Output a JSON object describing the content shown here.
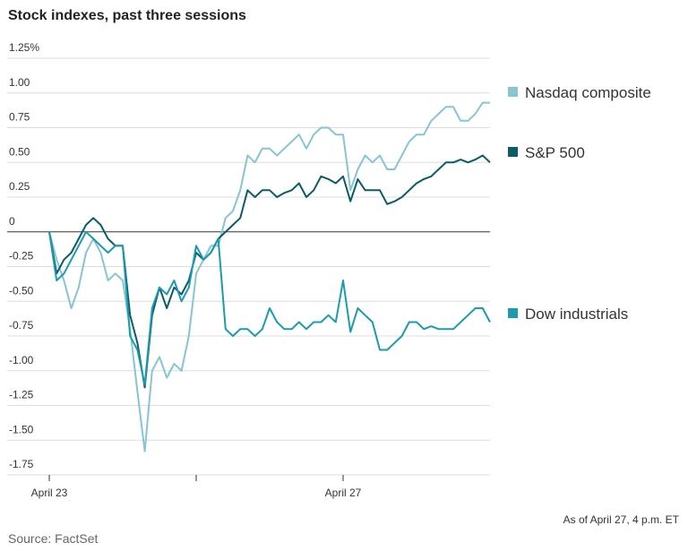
{
  "chart_data": {
    "type": "line",
    "title": "Stock indexes, past three sessions",
    "note": "As of April 27, 4 p.m. ET",
    "source": "Source: FactSet",
    "x": [
      0,
      1,
      2,
      3,
      4,
      5,
      6,
      7,
      8,
      9,
      10,
      11,
      12,
      13,
      14,
      15,
      16,
      17,
      18,
      19,
      20,
      21,
      22,
      23,
      24,
      25,
      26,
      27,
      28,
      29,
      30,
      31,
      32,
      33,
      34,
      35,
      36,
      37,
      38,
      39,
      40,
      41,
      42,
      43,
      44,
      45,
      46,
      47,
      48,
      49,
      50,
      51,
      52,
      53,
      54,
      55,
      56,
      57,
      58,
      59,
      60
    ],
    "xlim": [
      0,
      60
    ],
    "xticks": [
      {
        "value": 0,
        "label": "April 23"
      },
      {
        "value": 20,
        "label": null
      },
      {
        "value": 40,
        "label": "April 27"
      }
    ],
    "ylim": [
      -1.75,
      1.25
    ],
    "yticks": [
      {
        "value": 1.25,
        "label": "1.25%"
      },
      {
        "value": 1,
        "label": "1.00"
      },
      0.75,
      {
        "value": 0.5,
        "label": "0.50"
      },
      0.25,
      0,
      -0.25,
      {
        "value": -0.5,
        "label": "-0.50"
      },
      -0.75,
      {
        "value": -1,
        "label": "-1.00"
      },
      -1.25,
      {
        "value": -1.5,
        "label": "-1.50"
      },
      -1.75
    ],
    "grid": true,
    "series": [
      {
        "name": "Nasdaq composite",
        "color": "#86c5d2",
        "values": [
          0,
          -0.2,
          -0.35,
          -0.55,
          -0.4,
          -0.15,
          -0.05,
          -0.15,
          -0.35,
          -0.3,
          -0.35,
          -0.7,
          -1.15,
          -1.58,
          -1.0,
          -0.9,
          -1.05,
          -0.95,
          -1.0,
          -0.75,
          -0.3,
          -0.2,
          -0.1,
          -0.1,
          0.1,
          0.15,
          0.3,
          0.55,
          0.5,
          0.6,
          0.6,
          0.55,
          0.6,
          0.65,
          0.7,
          0.6,
          0.7,
          0.75,
          0.75,
          0.7,
          0.7,
          0.3,
          0.45,
          0.55,
          0.5,
          0.55,
          0.45,
          0.45,
          0.55,
          0.65,
          0.7,
          0.7,
          0.8,
          0.85,
          0.9,
          0.9,
          0.8,
          0.8,
          0.85,
          0.93,
          0.93
        ]
      },
      {
        "name": "S&P 500",
        "color": "#0a5c66",
        "values": [
          0,
          -0.3,
          -0.2,
          -0.15,
          -0.05,
          0.05,
          0.1,
          0.05,
          -0.05,
          -0.1,
          -0.1,
          -0.6,
          -0.8,
          -1.12,
          -0.6,
          -0.4,
          -0.55,
          -0.4,
          -0.45,
          -0.35,
          -0.15,
          -0.2,
          -0.15,
          -0.05,
          0,
          0.05,
          0.1,
          0.3,
          0.25,
          0.3,
          0.3,
          0.25,
          0.28,
          0.3,
          0.35,
          0.25,
          0.3,
          0.4,
          0.38,
          0.35,
          0.4,
          0.22,
          0.38,
          0.3,
          0.3,
          0.3,
          0.2,
          0.22,
          0.25,
          0.3,
          0.35,
          0.38,
          0.4,
          0.45,
          0.5,
          0.5,
          0.52,
          0.5,
          0.52,
          0.55,
          0.5
        ]
      },
      {
        "name": "Dow industrials",
        "color": "#1a9bb0",
        "values": [
          0,
          -0.35,
          -0.3,
          -0.2,
          -0.1,
          0,
          -0.05,
          -0.1,
          -0.15,
          -0.1,
          -0.1,
          -0.75,
          -0.85,
          -1.1,
          -0.55,
          -0.4,
          -0.45,
          -0.35,
          -0.5,
          -0.4,
          -0.1,
          -0.2,
          -0.15,
          -0.05,
          -0.7,
          -0.75,
          -0.7,
          -0.7,
          -0.75,
          -0.7,
          -0.55,
          -0.65,
          -0.7,
          -0.7,
          -0.65,
          -0.7,
          -0.65,
          -0.65,
          -0.6,
          -0.65,
          -0.35,
          -0.72,
          -0.55,
          -0.6,
          -0.65,
          -0.85,
          -0.85,
          -0.8,
          -0.75,
          -0.65,
          -0.65,
          -0.7,
          -0.68,
          -0.7,
          -0.7,
          -0.7,
          -0.65,
          -0.6,
          -0.55,
          -0.55,
          -0.65
        ]
      }
    ]
  }
}
